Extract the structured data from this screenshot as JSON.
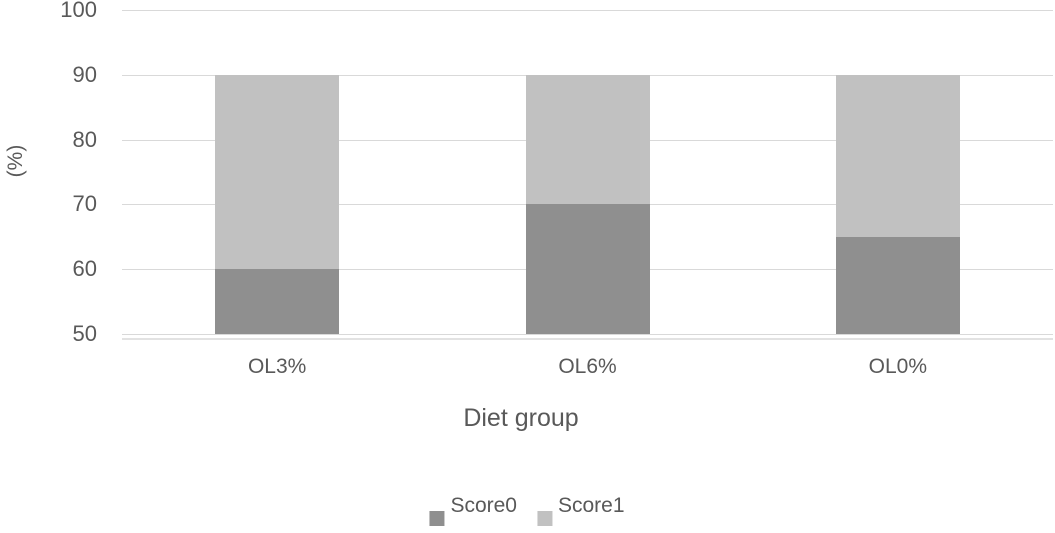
{
  "chart_data": {
    "type": "bar",
    "stacked": true,
    "title": "",
    "xlabel": "Diet group",
    "ylabel": "(%)",
    "categories": [
      "OL3%",
      "OL6%",
      "OL0%"
    ],
    "series": [
      {
        "name": "Score0",
        "values": [
          60,
          70,
          65
        ],
        "color": "#8f8f8f"
      },
      {
        "name": "Score1",
        "values": [
          30,
          20,
          25
        ],
        "color": "#c1c1c1"
      }
    ],
    "stack_totals": [
      90,
      90,
      90
    ],
    "ylim": [
      50,
      100
    ],
    "yticks": [
      50,
      60,
      70,
      80,
      90,
      100
    ],
    "grid": true,
    "legend_position": "bottom"
  },
  "colors": {
    "text": "#595959",
    "gridline": "#d9d9d9",
    "axis_line": "#e2e2e2",
    "background": "#ffffff"
  }
}
